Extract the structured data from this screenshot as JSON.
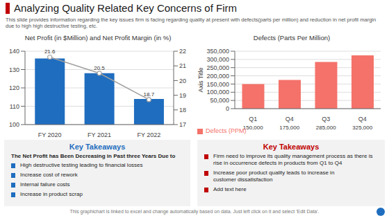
{
  "title": "Analyzing Quality Related Key Concerns of Firm",
  "subtitle": "This slide provides information regarding the key issues firm is facing regarding quality at present with defects(parts per million) and reduction in net profit margin due to high high destructive testing, etc.",
  "chart_data": [
    {
      "type": "bar",
      "title": "Net Profit (in $Million) and Net Profit Margin (in %)",
      "categories": [
        "FY 2020",
        "FY 2021",
        "FY 2022"
      ],
      "series": [
        {
          "type": "bar",
          "color": "#1f6dbf",
          "values": [
            136,
            128,
            114
          ]
        },
        {
          "type": "line",
          "axis": "y2",
          "color": "#a0a0a0",
          "marker": "circle",
          "data_labels": true,
          "values": [
            21.6,
            20.5,
            18.7
          ]
        }
      ],
      "ylim": [
        100,
        140
      ],
      "yticks": [
        100,
        110,
        120,
        130,
        140
      ],
      "y2lim": [
        17,
        22
      ],
      "y2ticks": [
        17,
        18,
        19,
        20,
        21,
        22
      ],
      "grid": true
    },
    {
      "type": "bar",
      "title": "Defects (Parts Per Million)",
      "categories": [
        "Q1",
        "Q4",
        "Q3",
        "Q4"
      ],
      "series": [
        {
          "type": "bar",
          "name": "Defects (PPM)",
          "color": "#f4726a",
          "values": [
            150000,
            175000,
            285000,
            325000
          ],
          "value_labels": [
            "150,000",
            "175,000",
            "285,000",
            "325,000"
          ]
        }
      ],
      "ylabel": "Axis Title",
      "ylim": [
        0,
        350000
      ],
      "yticks": [
        0,
        {
          "value": 50000,
          "label": "50,000"
        },
        {
          "value": 100000,
          "label": "100,000"
        },
        {
          "value": 150000,
          "label": "150,000"
        },
        {
          "value": 200000,
          "label": "200,000"
        },
        {
          "value": 250000,
          "label": "250,000"
        },
        {
          "value": 300000,
          "label": "300,000"
        },
        {
          "value": 350000,
          "label": "350,000"
        }
      ],
      "grid": true,
      "legend": "lower left",
      "data_labels": true
    }
  ],
  "annotations": [
    {
      "title": "Key Takeaways",
      "subtitle": "The Net Profit has Been Decreasing in Past three Years Due to",
      "color": "#1f6dbf",
      "items": [
        "High destructive testing leading to financial losses",
        "Increase cost of rework",
        "Internal failure costs",
        "Increase in product scrap"
      ]
    },
    {
      "title": "Key Takeaways",
      "color": "#c00000",
      "items": [
        "Firm need to improve its quality management process as there is rise in occurrence defects in products from Q1 to Q4",
        "Increase poor product quality leads to increase in\ncustomer dissatisfaction",
        "Add text here"
      ]
    }
  ],
  "footer": "This graphichart is linked to excel and change automatically based on data. Just left click on it and select 'Edit Data'."
}
